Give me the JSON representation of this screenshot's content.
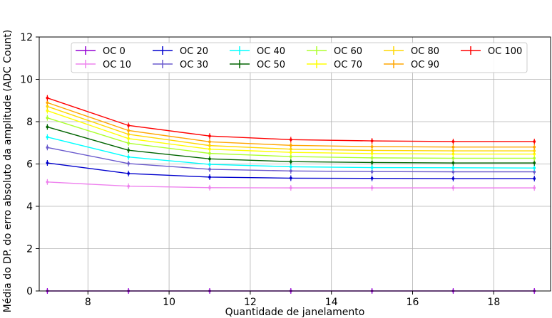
{
  "chart_data": {
    "type": "line",
    "title": "",
    "xlabel": "Quantidade de janelamento",
    "ylabel": "Média do DP. do erro absoluto da amplitude (ADC Count)",
    "xlim": [
      6.8,
      19.4
    ],
    "ylim": [
      0,
      12
    ],
    "x_ticks": [
      8,
      10,
      12,
      14,
      16,
      18
    ],
    "y_ticks": [
      0,
      2,
      4,
      6,
      8,
      10,
      12
    ],
    "grid": true,
    "legend_position": "top",
    "x": [
      7,
      9,
      11,
      13,
      15,
      17,
      19
    ],
    "series": [
      {
        "name": "OC 0",
        "color": "#9400d3",
        "values": [
          0.0,
          0.0,
          0.0,
          0.0,
          0.0,
          0.0,
          0.0
        ]
      },
      {
        "name": "OC 10",
        "color": "#ee82ee",
        "values": [
          5.15,
          4.95,
          4.88,
          4.87,
          4.87,
          4.87,
          4.87
        ]
      },
      {
        "name": "OC 20",
        "color": "#0000cd",
        "values": [
          6.05,
          5.55,
          5.38,
          5.33,
          5.32,
          5.31,
          5.31
        ]
      },
      {
        "name": "OC 30",
        "color": "#6a5acd",
        "values": [
          6.78,
          6.02,
          5.75,
          5.67,
          5.64,
          5.63,
          5.63
        ]
      },
      {
        "name": "OC 40",
        "color": "#00ffff",
        "values": [
          7.27,
          6.33,
          5.98,
          5.87,
          5.83,
          5.82,
          5.81
        ]
      },
      {
        "name": "OC 50",
        "color": "#006400",
        "values": [
          7.75,
          6.65,
          6.24,
          6.11,
          6.07,
          6.05,
          6.05
        ]
      },
      {
        "name": "OC 60",
        "color": "#adff2f",
        "values": [
          8.18,
          6.98,
          6.5,
          6.35,
          6.29,
          6.27,
          6.27
        ]
      },
      {
        "name": "OC 70",
        "color": "#ffff00",
        "values": [
          8.52,
          7.2,
          6.7,
          6.55,
          6.49,
          6.47,
          6.47
        ]
      },
      {
        "name": "OC 80",
        "color": "#ffd700",
        "values": [
          8.72,
          7.4,
          6.87,
          6.7,
          6.64,
          6.62,
          6.62
        ]
      },
      {
        "name": "OC 90",
        "color": "#ffa500",
        "values": [
          8.9,
          7.58,
          7.05,
          6.88,
          6.82,
          6.8,
          6.8
        ]
      },
      {
        "name": "OC 100",
        "color": "#ff0000",
        "values": [
          9.12,
          7.82,
          7.32,
          7.15,
          7.09,
          7.06,
          7.06
        ]
      }
    ],
    "legend_order": [
      "OC 0",
      "OC 10",
      "OC 20",
      "OC 30",
      "OC 40",
      "OC 50",
      "OC 60",
      "OC 70",
      "OC 80",
      "OC 90",
      "OC 100"
    ]
  }
}
